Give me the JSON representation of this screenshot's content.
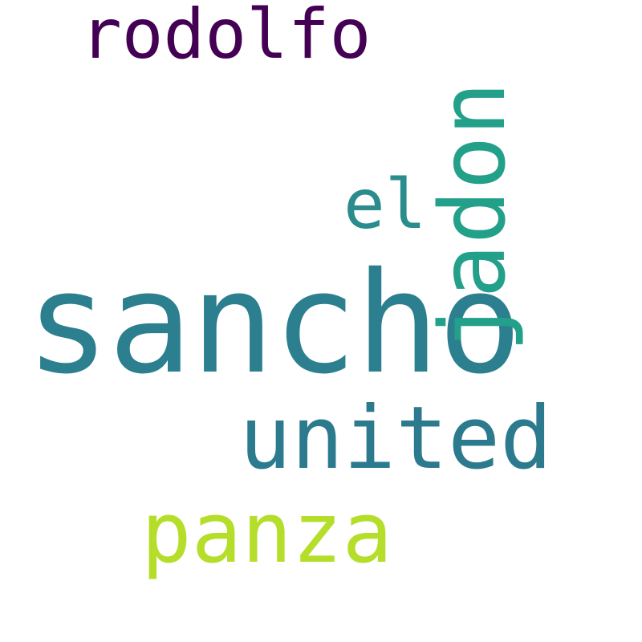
{
  "words": [
    {
      "key": "rodolfo",
      "text": "rodolfo",
      "color": "#440154"
    },
    {
      "key": "el",
      "text": "el",
      "color": "#2a8c8c"
    },
    {
      "key": "sancho",
      "text": "sancho",
      "color": "#2c7f8f"
    },
    {
      "key": "jadon",
      "text": "jadon",
      "color": "#23a08a"
    },
    {
      "key": "united",
      "text": "united",
      "color": "#2b7a8e"
    },
    {
      "key": "panza",
      "text": "panza",
      "color": "#b5de2b"
    }
  ]
}
